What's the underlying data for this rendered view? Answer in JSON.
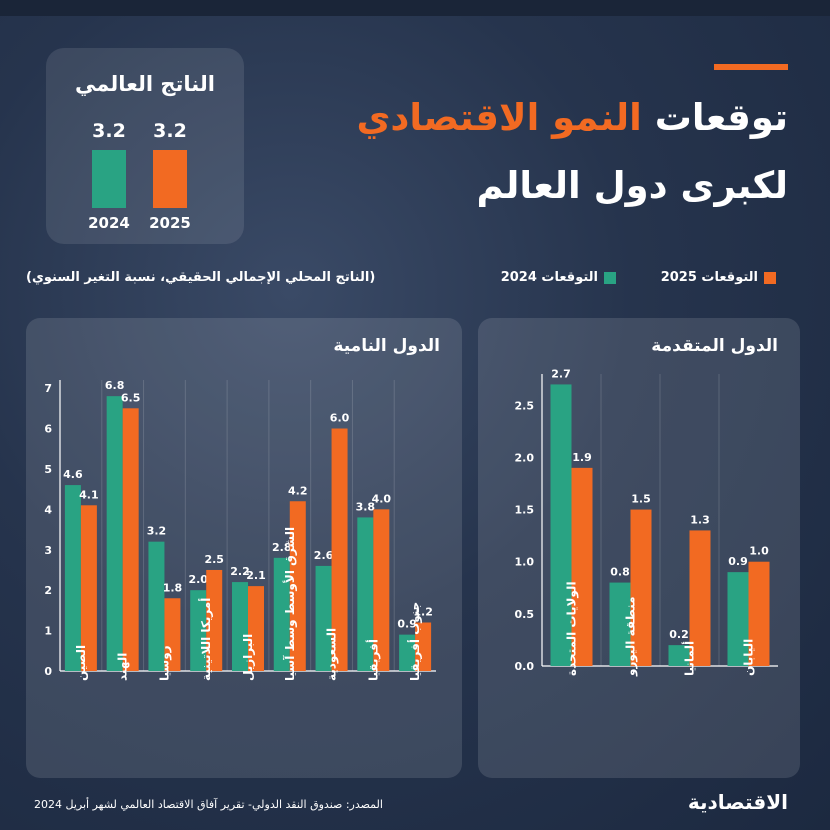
{
  "title": {
    "line1_part1": "توقعات",
    "line1_highlight": "النمو الاقتصادي",
    "line2": "لكبرى دول العالم"
  },
  "global": {
    "title": "الناتج العالمي",
    "value_2024": "3.2",
    "value_2025": "3.2",
    "year_2024": "2024",
    "year_2025": "2025"
  },
  "legend": {
    "label_2025": "التوقعات 2025",
    "label_2024": "التوقعات 2024"
  },
  "units": "(الناتج المحلي الإجمالي الحقيقي، نسبة التغير السنوي)",
  "colors": {
    "green": "#29a383",
    "orange": "#f26a22",
    "accent": "#f26a22",
    "background": "#26344d"
  },
  "chart_data": [
    {
      "type": "bar",
      "title": "الدول النامية",
      "categories": [
        "الصين",
        "الهند",
        "روسيا",
        "أمريكا اللاتينية",
        "البرازيل",
        "الشرق الأوسط وسط آسيا",
        "السعودية",
        "أفريقيا",
        "جنوب أفريقيا"
      ],
      "series": [
        {
          "name": "التوقعات 2024",
          "color": "#29a383",
          "values": [
            4.6,
            6.8,
            3.2,
            2.0,
            2.2,
            2.8,
            2.6,
            3.8,
            0.9
          ]
        },
        {
          "name": "التوقعات 2025",
          "color": "#f26a22",
          "values": [
            4.1,
            6.5,
            1.8,
            2.5,
            2.1,
            4.2,
            6.0,
            4.0,
            1.2
          ]
        }
      ],
      "value_labels": {
        "s0": [
          "4.6",
          "6.8",
          "3.2",
          "2.0",
          "2.2",
          "2.8",
          "2.6",
          "3.8",
          "0.9"
        ],
        "s1": [
          "4.1",
          "6.5",
          "1.8",
          "2.5",
          "2.1",
          "4.2",
          "6.0",
          "4.0",
          "1.2"
        ]
      },
      "yticks": [
        "0",
        "1",
        "2",
        "3",
        "4",
        "5",
        "6",
        "7"
      ],
      "yticks_num": [
        0,
        1,
        2,
        3,
        4,
        5,
        6,
        7
      ],
      "ylim": [
        0,
        7.2
      ],
      "grid": true
    },
    {
      "type": "bar",
      "title": "الدول المتقدمة",
      "categories": [
        "الولايات المتحدة",
        "منطقة اليورو",
        "ألمانيا",
        "اليابان"
      ],
      "series": [
        {
          "name": "التوقعات 2024",
          "color": "#29a383",
          "values": [
            2.7,
            0.8,
            0.2,
            0.9
          ]
        },
        {
          "name": "التوقعات 2025",
          "color": "#f26a22",
          "values": [
            1.9,
            1.5,
            1.3,
            1.0
          ]
        }
      ],
      "value_labels": {
        "s0": [
          "2.7",
          "0.8",
          "0.2",
          "0.9"
        ],
        "s1": [
          "1.9",
          "1.5",
          "1.3",
          "1.0"
        ]
      },
      "yticks": [
        "0.0",
        "0.5",
        "1.0",
        "1.5",
        "2.0",
        "2.5"
      ],
      "yticks_num": [
        0,
        0.5,
        1,
        1.5,
        2,
        2.5
      ],
      "ylim": [
        0,
        2.8
      ],
      "grid": true
    }
  ],
  "source": "المصدر: صندوق النقد الدولي- تقرير آفاق الاقتصاد العالمي لشهر أبريل 2024",
  "logo": "الاقتصادية"
}
